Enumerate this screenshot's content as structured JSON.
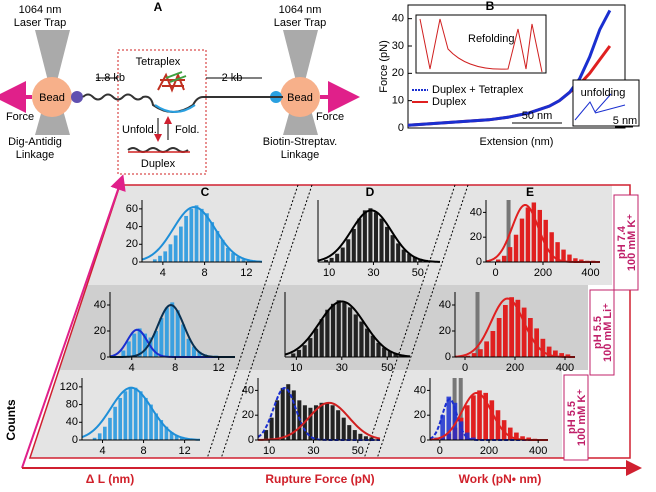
{
  "panel_a": {
    "label": "A",
    "left_trap": [
      "1064 nm",
      "Laser Trap"
    ],
    "right_trap": [
      "1064 nm",
      "Laser Trap"
    ],
    "left_bead": "Bead",
    "right_bead": "Bead",
    "left_force": "Force",
    "right_force": "Force",
    "left_handle": "1.8 kb",
    "right_handle": "2 kb",
    "tetraplex": "Tetraplex",
    "unfold": "Unfold.",
    "fold": "Fold.",
    "duplex": "Duplex",
    "left_linkage": [
      "Dig-Antidig",
      "Linkage"
    ],
    "right_linkage": [
      "Biotin-Streptav.",
      "Linkage"
    ]
  },
  "figure": {
    "panel_b": "B",
    "columns": [
      "C",
      "D",
      "E"
    ],
    "y_label": "Counts",
    "x_labels": [
      "Δ L (nm)",
      "Rupture Force (pN)",
      "Work (pN• nm)"
    ],
    "rows": [
      [
        "pH 7.4",
        "100 mM K⁺"
      ],
      [
        "pH 5.5",
        "100 mM Li⁺"
      ],
      [
        "pH 5.5",
        "100 mM K⁺"
      ]
    ]
  },
  "chart_data": [
    {
      "type": "line",
      "x_label": "Extension (nm)",
      "y_label": "Force (pN)",
      "x": [
        0,
        20,
        40,
        60,
        80,
        100,
        120,
        140,
        150,
        160,
        170,
        180,
        190,
        200
      ],
      "series": [
        {
          "name": "Duplex + Tetraplex",
          "color": "#1a2fd0",
          "values": [
            1,
            1.5,
            2,
            2.5,
            3,
            4,
            5.5,
            8,
            10,
            13,
            18,
            26,
            36,
            43
          ]
        },
        {
          "name": "Duplex",
          "color": "#e02020",
          "values": [
            1,
            1.5,
            2,
            2.5,
            3,
            4,
            5.5,
            8,
            10,
            13,
            16,
            20,
            25,
            30
          ]
        }
      ],
      "xlim": [
        0,
        215
      ],
      "ylim": [
        0,
        45
      ],
      "yticks": [
        0,
        10,
        20,
        30,
        40
      ],
      "annotations": [
        "Refolding",
        "50 nm",
        "unfolding",
        "5 nm"
      ]
    },
    {
      "type": "histogram",
      "bins": [
        3,
        3.5,
        4,
        4.5,
        5,
        5.5,
        6,
        6.5,
        7,
        7.5,
        8,
        8.5,
        9,
        9.5,
        10,
        10.5,
        11,
        11.5,
        12,
        12.5,
        13
      ],
      "series": [
        {
          "color": "#3aa0e0",
          "values": [
            3,
            7,
            12,
            20,
            30,
            40,
            52,
            60,
            64,
            60,
            55,
            45,
            35,
            25,
            16,
            10,
            6,
            3,
            2,
            1
          ]
        }
      ],
      "xlim": [
        2,
        13.5
      ],
      "ylim": [
        0,
        70
      ],
      "xticks": [
        4,
        8,
        12
      ],
      "yticks": [
        0,
        20,
        40,
        60
      ],
      "fits": [
        {
          "color": "#1f8fd8",
          "mean": 7,
          "sd": 2,
          "peak": 62
        }
      ]
    },
    {
      "type": "histogram",
      "bins": [
        7.5,
        10,
        12.5,
        15,
        17.5,
        20,
        22.5,
        25,
        27.5,
        30,
        32.5,
        35,
        37.5,
        40,
        42.5,
        45,
        47.5,
        50,
        52.5,
        55,
        57.5
      ],
      "series": [
        {
          "color": "#222222",
          "values": [
            2,
            4,
            8,
            14,
            22,
            32,
            42,
            50,
            52,
            48,
            42,
            34,
            26,
            18,
            12,
            8,
            5,
            3,
            2,
            1
          ]
        }
      ],
      "xlim": [
        5,
        60
      ],
      "ylim": [
        0,
        60
      ],
      "xticks": [
        10,
        30,
        50
      ],
      "fits": [
        {
          "color": "#000000",
          "mean": 29,
          "sd": 9,
          "peak": 50
        }
      ]
    },
    {
      "type": "histogram",
      "bins": [
        -25,
        0,
        25,
        50,
        75,
        100,
        125,
        150,
        175,
        200,
        225,
        250,
        275,
        300,
        325,
        350,
        375,
        400,
        425
      ],
      "series": [
        {
          "color": "#e02020",
          "values": [
            0,
            2,
            5,
            12,
            22,
            35,
            44,
            48,
            42,
            34,
            24,
            16,
            10,
            6,
            3,
            2,
            1,
            1
          ]
        }
      ],
      "xlim": [
        -40,
        440
      ],
      "ylim": [
        0,
        50
      ],
      "xticks": [
        0,
        200,
        400
      ],
      "yticks": [
        0,
        20,
        40
      ],
      "markers": [
        55
      ],
      "fits": [
        {
          "color": "#e02020",
          "mean": 125,
          "sd": 55,
          "peak": 46
        }
      ]
    },
    {
      "type": "histogram",
      "bins": [
        3,
        3.5,
        4,
        4.5,
        5,
        5.5,
        6,
        6.5,
        7,
        7.5,
        8,
        8.5,
        9,
        9.5,
        10,
        10.5,
        11,
        11.5,
        12
      ],
      "series": [
        {
          "color": "#3aa0e0",
          "values": [
            5,
            12,
            18,
            22,
            18,
            15,
            20,
            30,
            38,
            42,
            36,
            25,
            14,
            8,
            4,
            2,
            1,
            1
          ]
        }
      ],
      "xlim": [
        2,
        13.5
      ],
      "ylim": [
        0,
        50
      ],
      "xticks": [
        4,
        8,
        12
      ],
      "yticks": [
        0,
        20,
        40
      ],
      "fits": [
        {
          "color": "#1a2fd0",
          "mean": 4.5,
          "sd": 0.9,
          "peak": 21
        },
        {
          "color": "#0a3050",
          "mean": 7.6,
          "sd": 1.2,
          "peak": 40
        }
      ]
    },
    {
      "type": "histogram",
      "bins": [
        7.5,
        10,
        12.5,
        15,
        17.5,
        20,
        22.5,
        25,
        27.5,
        30,
        32.5,
        35,
        37.5,
        40,
        42.5,
        45,
        47.5,
        50,
        52.5,
        55,
        57.5
      ],
      "series": [
        {
          "color": "#222222",
          "values": [
            3,
            6,
            10,
            16,
            24,
            32,
            40,
            45,
            48,
            46,
            42,
            36,
            30,
            24,
            18,
            12,
            8,
            5,
            3,
            2
          ]
        }
      ],
      "xlim": [
        5,
        60
      ],
      "ylim": [
        0,
        55
      ],
      "xticks": [
        10,
        30,
        50
      ],
      "fits": [
        {
          "color": "#000000",
          "mean": 30,
          "sd": 10,
          "peak": 47
        }
      ]
    },
    {
      "type": "histogram",
      "bins": [
        -25,
        0,
        25,
        50,
        75,
        100,
        125,
        150,
        175,
        200,
        225,
        250,
        275,
        300,
        325,
        350,
        375,
        400,
        425
      ],
      "series": [
        {
          "color": "#e02020",
          "values": [
            0,
            1,
            3,
            6,
            12,
            20,
            30,
            40,
            46,
            44,
            38,
            30,
            22,
            14,
            8,
            5,
            3,
            2
          ]
        }
      ],
      "xlim": [
        -40,
        440
      ],
      "ylim": [
        0,
        50
      ],
      "xticks": [
        0,
        200,
        400
      ],
      "yticks": [
        0,
        20,
        40
      ],
      "markers": [
        50
      ],
      "fits": [
        {
          "color": "#e02020",
          "mean": 170,
          "sd": 65,
          "peak": 45
        }
      ]
    },
    {
      "type": "histogram",
      "bins": [
        3,
        3.5,
        4,
        4.5,
        5,
        5.5,
        6,
        6.5,
        7,
        7.5,
        8,
        8.5,
        9,
        9.5,
        10,
        10.5,
        11,
        11.5,
        12,
        12.5,
        13
      ],
      "series": [
        {
          "color": "#3aa0e0",
          "values": [
            5,
            15,
            30,
            50,
            75,
            95,
            110,
            120,
            118,
            110,
            95,
            80,
            60,
            45,
            30,
            18,
            10,
            5,
            3,
            2
          ]
        }
      ],
      "xlim": [
        2,
        13.5
      ],
      "ylim": [
        0,
        140
      ],
      "xticks": [
        4,
        8,
        12
      ],
      "yticks": [
        0,
        40,
        80,
        120
      ],
      "fits": [
        {
          "color": "#1f8fd8",
          "mean": 6.8,
          "sd": 2,
          "peak": 118
        }
      ]
    },
    {
      "type": "histogram",
      "bins": [
        7.5,
        10,
        12.5,
        15,
        17.5,
        20,
        22.5,
        25,
        27.5,
        30,
        32.5,
        35,
        37.5,
        40,
        42.5,
        45,
        47.5,
        50,
        52.5,
        55,
        57.5
      ],
      "series": [
        {
          "color": "#222222",
          "values": [
            8,
            18,
            32,
            42,
            45,
            40,
            32,
            28,
            26,
            28,
            30,
            30,
            28,
            24,
            18,
            12,
            8,
            5,
            3,
            2
          ]
        }
      ],
      "xlim": [
        5,
        60
      ],
      "ylim": [
        0,
        50
      ],
      "xticks": [
        10,
        30,
        50
      ],
      "yticks": [
        0,
        20,
        40
      ],
      "fits": [
        {
          "color": "#1a2fd0",
          "mean": 17,
          "sd": 5,
          "peak": 42,
          "style": "dashed"
        },
        {
          "color": "#d02020",
          "mean": 37,
          "sd": 9,
          "peak": 30
        }
      ]
    },
    {
      "type": "histogram",
      "bins": [
        -25,
        0,
        25,
        50,
        75,
        100,
        125,
        150,
        175,
        200,
        225,
        250,
        275,
        300,
        325,
        350,
        375,
        400,
        425
      ],
      "series": [
        {
          "color": "#e02020",
          "values": [
            0,
            2,
            5,
            10,
            18,
            28,
            36,
            40,
            38,
            32,
            24,
            16,
            10,
            6,
            3,
            2,
            1,
            0
          ]
        },
        {
          "color": "#1a2fd0",
          "values": [
            2,
            20,
            35,
            30,
            15,
            6,
            2,
            0,
            0,
            0,
            0,
            0,
            0,
            0,
            0,
            0,
            0,
            0
          ]
        }
      ],
      "xlim": [
        -40,
        440
      ],
      "ylim": [
        0,
        50
      ],
      "xticks": [
        0,
        200,
        400
      ],
      "yticks": [
        0,
        20,
        40
      ],
      "markers": [
        60,
        85
      ],
      "fits": [
        {
          "color": "#1a2fd0",
          "mean": 40,
          "sd": 30,
          "peak": 33,
          "style": "dashed"
        },
        {
          "color": "#e02020",
          "mean": 150,
          "sd": 60,
          "peak": 38
        }
      ]
    }
  ]
}
